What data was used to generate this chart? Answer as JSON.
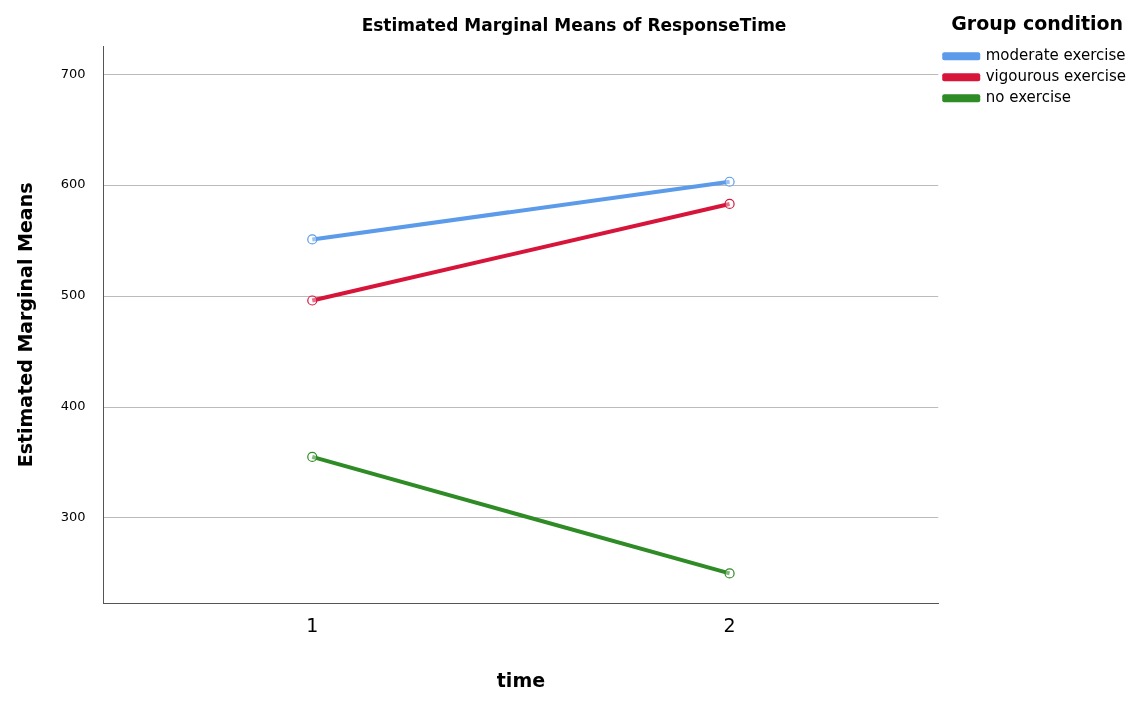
{
  "chart_data": {
    "type": "line",
    "title": "Estimated Marginal Means of ResponseTime",
    "xlabel": "time",
    "ylabel": "Estimated Marginal Means",
    "legend_title": "Group condition",
    "categories": [
      "1",
      "2"
    ],
    "series": [
      {
        "name": "moderate exercise",
        "color": "#5b9bea",
        "values": [
          551,
          603
        ]
      },
      {
        "name": "vigourous exercise",
        "color": "#d7153a",
        "values": [
          496,
          583
        ]
      },
      {
        "name": "no exercise",
        "color": "#2e8b25",
        "values": [
          355,
          250
        ]
      }
    ],
    "ylim": [
      223,
      725
    ],
    "yticks": [
      300,
      400,
      500,
      600,
      700
    ],
    "grid": "y",
    "legend": "top right",
    "marker": "circle",
    "line_style": "solid"
  }
}
